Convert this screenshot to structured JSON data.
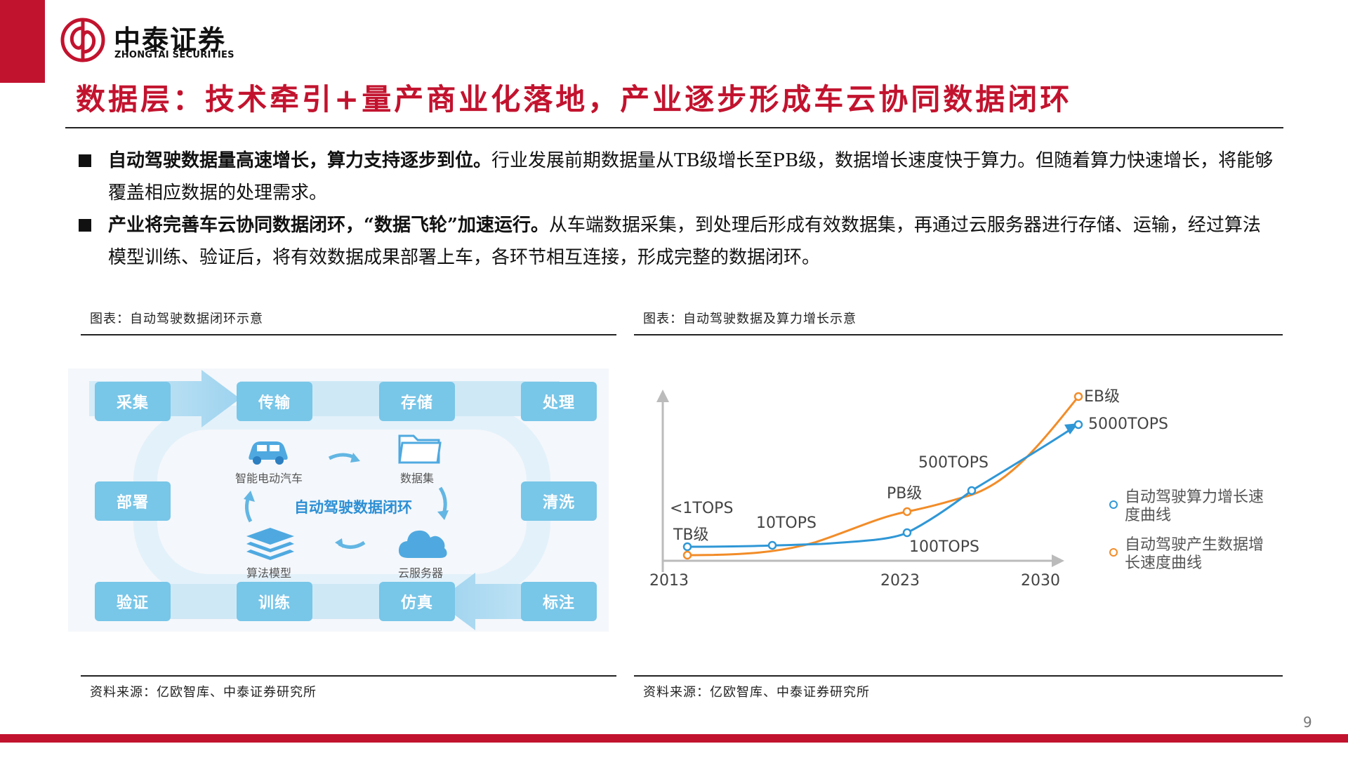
{
  "header": {
    "brand_cn": "中泰证券",
    "brand_en": "ZHONGTAI SECURITIES",
    "title": "数据层：技术牵引+量产商业化落地，产业逐步形成车云协同数据闭环",
    "accent_color": "#c2132e"
  },
  "bullets": [
    {
      "bold": "自动驾驶数据量高速增长，算力支持逐步到位。",
      "text": "行业发展前期数据量从TB级增长至PB级，数据增长速度快于算力。但随着算力快速增长，将能够覆盖相应数据的处理需求。"
    },
    {
      "bold": "产业将完善车云协同数据闭环，“数据飞轮”加速运行。",
      "text": "从车端数据采集，到处理后形成有效数据集，再通过云服务器进行存储、运输，经过算法模型训练、验证后，将有效数据成果部署上车，各环节相互连接，形成完整的数据闭环。"
    }
  ],
  "left_figure": {
    "caption": "图表：自动驾驶数据闭环示意",
    "source": "资料来源：亿欧智库、中泰证券研究所",
    "nodes": [
      "采集",
      "传输",
      "存储",
      "处理",
      "部署",
      "清洗",
      "验证",
      "训练",
      "仿真",
      "标注"
    ],
    "inner_labels": [
      "智能电动汽车",
      "数据集",
      "算法模型",
      "云服务器"
    ],
    "center": "自动驾驶数据闭环",
    "icons": [
      "car-icon",
      "folder-icon",
      "layers-icon",
      "cloud-icon",
      "cycle-arrow-icon"
    ],
    "node_color": "#78c6e8",
    "center_color": "#2c8fd4"
  },
  "right_figure": {
    "caption": "图表：自动驾驶数据及算力增长示意",
    "source": "资料来源：亿欧智库、中泰证券研究所"
  },
  "chart_data": {
    "type": "line",
    "x_tick_labels": [
      "2013",
      "2023",
      "2030"
    ],
    "series": [
      {
        "name": "自动驾驶算力增长速度曲线",
        "color": "#2f97d6",
        "points": [
          {
            "x": 2013,
            "label": "<1TOPS"
          },
          {
            "x": 2017,
            "label": "10TOPS"
          },
          {
            "x": 2023,
            "label": "100TOPS"
          },
          {
            "x": 2026,
            "label": "500TOPS"
          },
          {
            "x": 2031,
            "label": "5000TOPS"
          }
        ]
      },
      {
        "name": "自动驾驶产生数据增长速度曲线",
        "color": "#f28c28",
        "points": [
          {
            "x": 2013,
            "label": "TB级"
          },
          {
            "x": 2023,
            "label": "PB级"
          },
          {
            "x": 2031,
            "label": "EB级"
          }
        ]
      }
    ],
    "legend_position": "right",
    "grid": false
  },
  "page_number": "9"
}
